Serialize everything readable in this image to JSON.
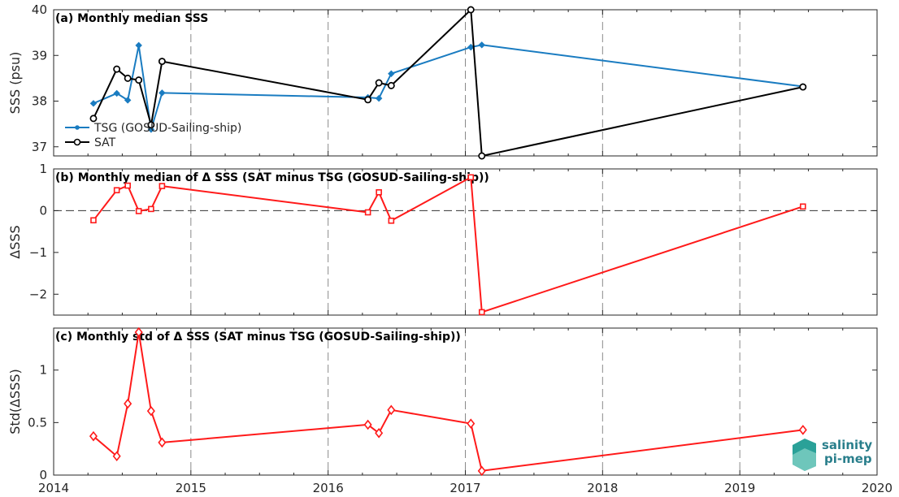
{
  "colors": {
    "tsg": "#1a7cc1",
    "sat": "#000000",
    "delta": "#ff1a1a",
    "grid": "#8a8a8a",
    "logo": "#2a9d8f"
  },
  "logo": {
    "line1": "salinity",
    "line2": "pi-mep"
  },
  "chart_data": [
    {
      "type": "line",
      "panel": "a",
      "title": "(a) Monthly median SSS",
      "ylabel": "SSS (psu)",
      "ylim": [
        36.8,
        40.0
      ],
      "xlim": [
        2014,
        2020
      ],
      "yticks": [
        37,
        38,
        39,
        40
      ],
      "legend_position": "bottom-left",
      "series": [
        {
          "name": "TSG (GOSUD-Sailing-ship)",
          "marker": "dot",
          "x": [
            2014.29,
            2014.46,
            2014.54,
            2014.62,
            2014.71,
            2014.79,
            2016.29,
            2016.37,
            2016.46,
            2017.04,
            2017.12,
            2019.46
          ],
          "y": [
            37.95,
            38.17,
            38.02,
            39.22,
            37.38,
            38.18,
            38.08,
            38.06,
            38.6,
            39.18,
            39.23,
            38.32
          ]
        },
        {
          "name": "SAT",
          "marker": "circle",
          "x": [
            2014.29,
            2014.46,
            2014.54,
            2014.62,
            2014.71,
            2014.79,
            2016.29,
            2016.37,
            2016.46,
            2017.04,
            2017.12,
            2019.46
          ],
          "y": [
            37.62,
            38.7,
            38.5,
            38.46,
            37.48,
            38.87,
            38.03,
            38.4,
            38.34,
            40.0,
            36.8,
            38.31
          ]
        }
      ]
    },
    {
      "type": "line",
      "panel": "b",
      "title": "(b) Monthly median of Δ SSS (SAT minus TSG (GOSUD-Sailing-ship))",
      "ylabel": "ΔSSS",
      "ylim": [
        -2.5,
        1.0
      ],
      "xlim": [
        2014,
        2020
      ],
      "yticks": [
        -2,
        -1,
        0,
        1
      ],
      "zero_line": true,
      "series": [
        {
          "marker": "square",
          "x": [
            2014.29,
            2014.46,
            2014.54,
            2014.62,
            2014.71,
            2014.79,
            2016.29,
            2016.37,
            2016.46,
            2017.04,
            2017.12,
            2019.46
          ],
          "y": [
            -0.23,
            0.49,
            0.6,
            -0.01,
            0.04,
            0.59,
            -0.04,
            0.44,
            -0.24,
            0.8,
            -2.43,
            0.1
          ]
        }
      ]
    },
    {
      "type": "line",
      "panel": "c",
      "title": "(c) Monthly std of Δ SSS (SAT minus TSG (GOSUD-Sailing-ship))",
      "ylabel": "Std(ΔSSS)",
      "ylim": [
        0,
        1.4
      ],
      "xlim": [
        2014,
        2020
      ],
      "yticks": [
        0,
        0.5,
        1
      ],
      "xticks": [
        2014,
        2015,
        2016,
        2017,
        2018,
        2019,
        2020
      ],
      "series": [
        {
          "marker": "diamond",
          "x": [
            2014.29,
            2014.46,
            2014.54,
            2014.62,
            2014.71,
            2014.79,
            2016.29,
            2016.37,
            2016.46,
            2017.04,
            2017.12,
            2019.46
          ],
          "y": [
            0.37,
            0.18,
            0.68,
            1.36,
            0.61,
            0.31,
            0.48,
            0.4,
            0.62,
            0.49,
            0.04,
            0.43
          ]
        }
      ]
    }
  ]
}
